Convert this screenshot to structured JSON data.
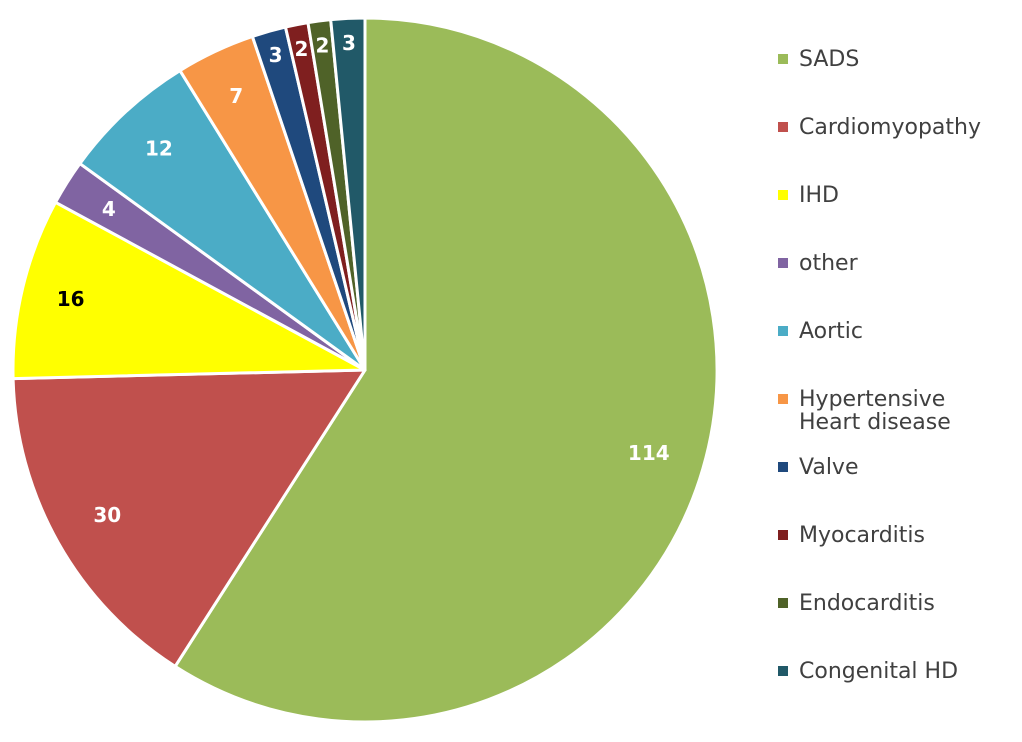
{
  "chart_data": {
    "type": "pie",
    "title": "",
    "legend_position": "right",
    "slices": [
      {
        "label": "SADS",
        "value": 114,
        "color": "#9BBB59",
        "label_color": "#FFFFFF"
      },
      {
        "label": "Cardiomyopathy",
        "value": 30,
        "color": "#C0504D",
        "label_color": "#FFFFFF"
      },
      {
        "label": "IHD",
        "value": 16,
        "color": "#FFFF00",
        "label_color": "#000000"
      },
      {
        "label": "other",
        "value": 4,
        "color": "#8064A2",
        "label_color": "#FFFFFF"
      },
      {
        "label": "Aortic",
        "value": 12,
        "color": "#4BACC6",
        "label_color": "#FFFFFF"
      },
      {
        "label": "Hypertensive",
        "label_line2": "Heart disease",
        "value": 7,
        "color": "#F79646",
        "label_color": "#FFFFFF"
      },
      {
        "label": "Valve",
        "value": 3,
        "color": "#1F497D",
        "label_color": "#FFFFFF"
      },
      {
        "label": "Myocarditis",
        "value": 2,
        "color": "#7F1F1F",
        "label_color": "#FFFFFF"
      },
      {
        "label": "Endocarditis",
        "value": 2,
        "color": "#4F6228",
        "label_color": "#FFFFFF"
      },
      {
        "label": "Congenital HD",
        "value": 3,
        "color": "#215968",
        "label_color": "#FFFFFF"
      }
    ]
  }
}
